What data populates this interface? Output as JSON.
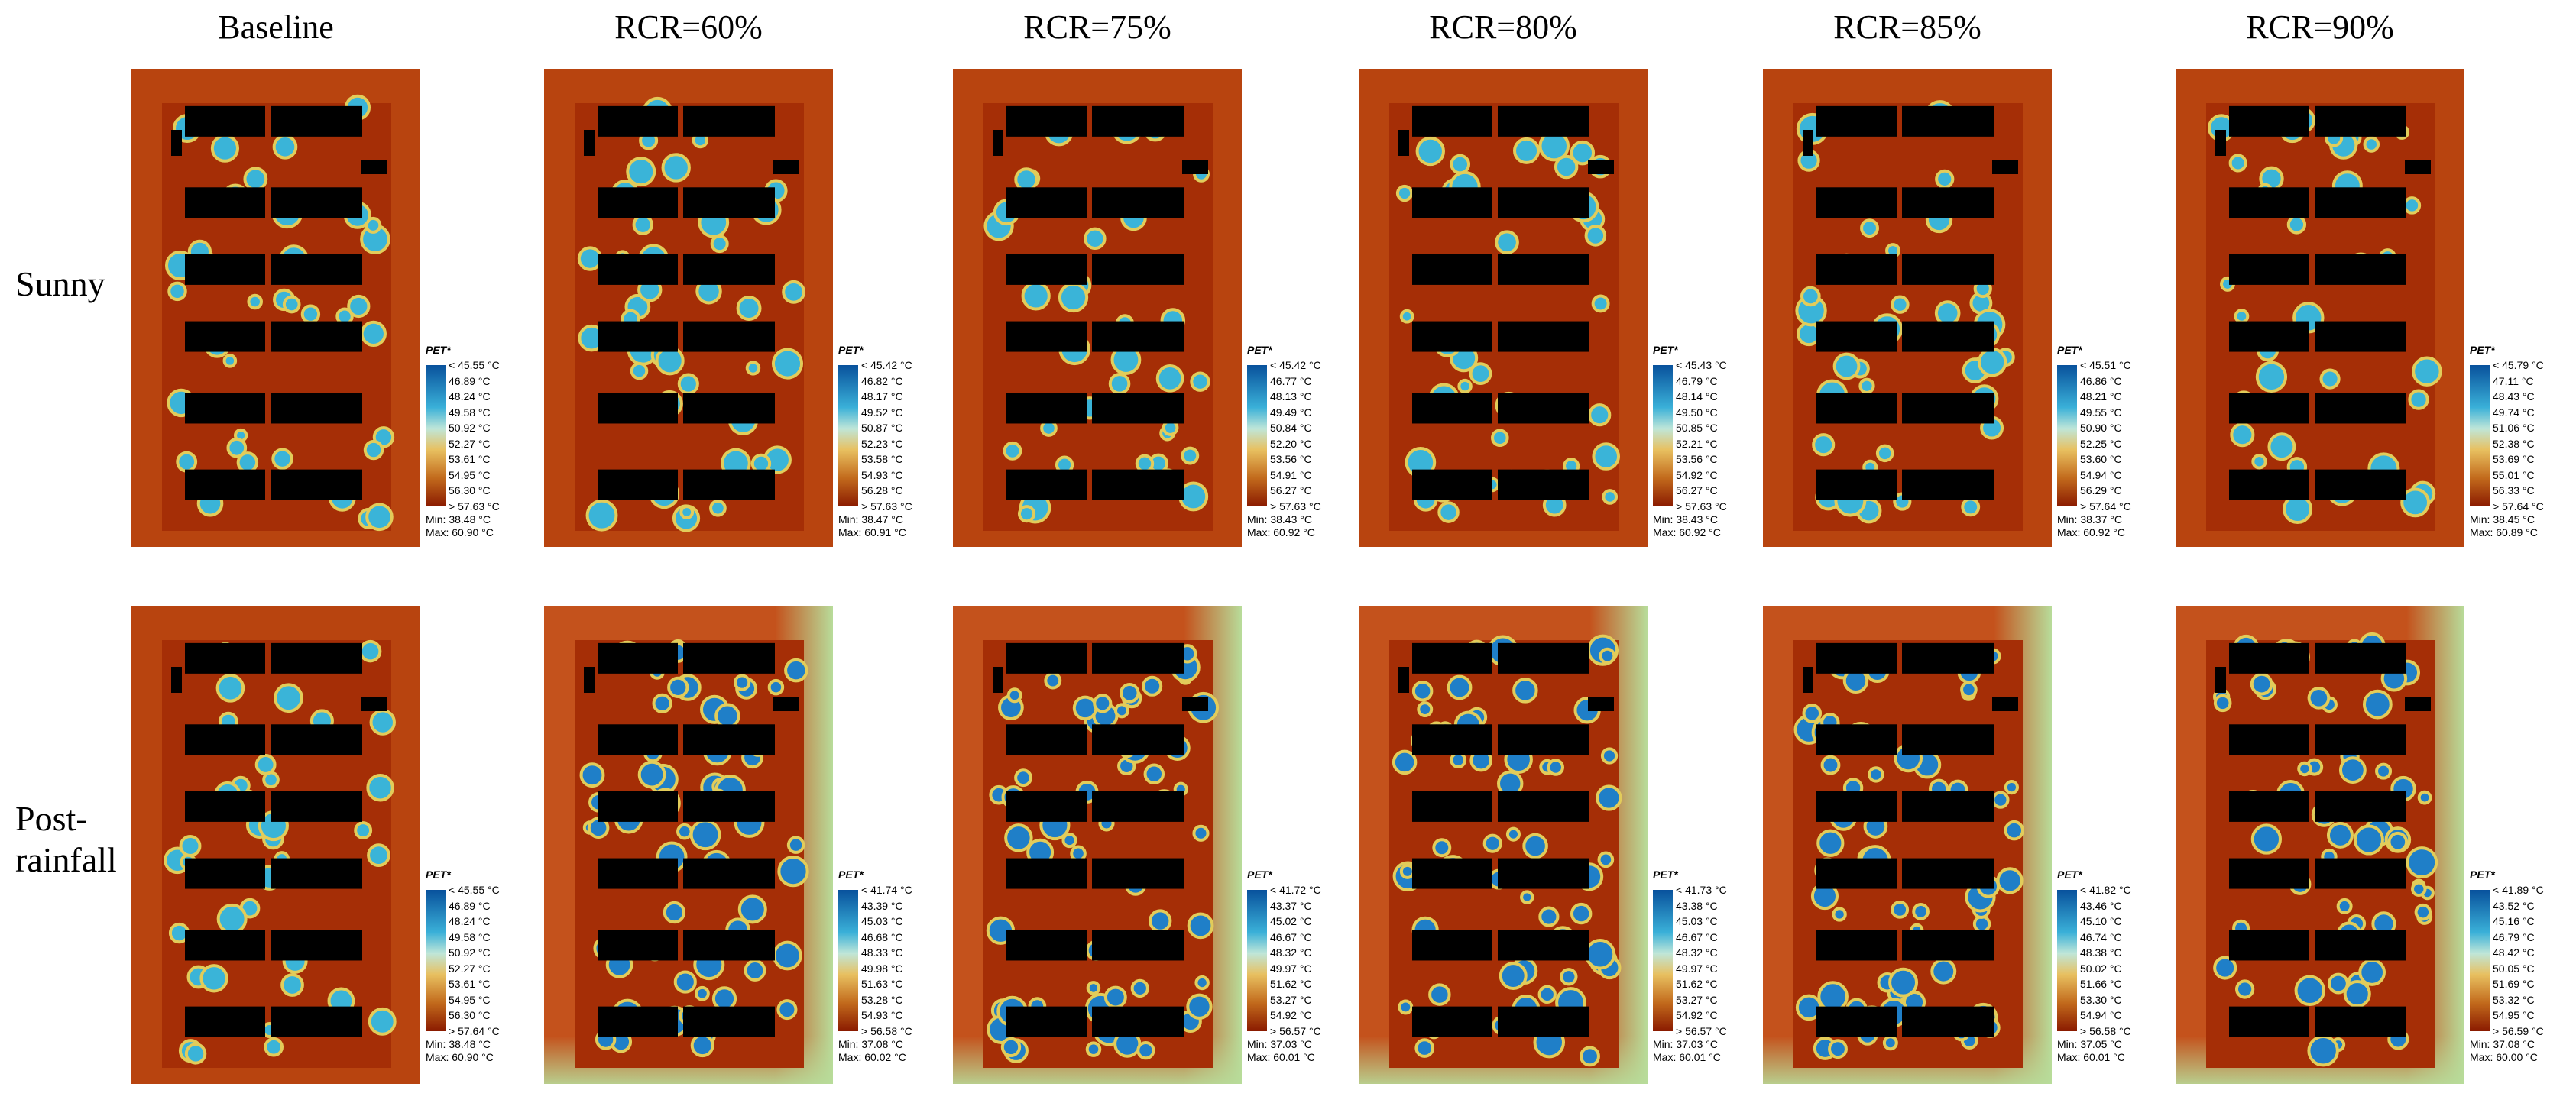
{
  "columns": [
    "Baseline",
    "RCR=60%",
    "RCR=75%",
    "RCR=80%",
    "RCR=85%",
    "RCR=90%"
  ],
  "rows": [
    "Sunny",
    "Post-rainfall"
  ],
  "panels": [
    [
      {
        "legend_title": "PET*",
        "labels": [
          "< 45.55 °C",
          "46.89 °C",
          "48.24 °C",
          "49.58 °C",
          "50.92 °C",
          "52.27 °C",
          "53.61 °C",
          "54.95 °C",
          "56.30 °C",
          "> 57.63 °C"
        ],
        "min": "Min: 38.48 °C",
        "max": "Max: 60.90 °C"
      },
      {
        "legend_title": "PET*",
        "labels": [
          "< 45.42 °C",
          "46.82 °C",
          "48.17 °C",
          "49.52 °C",
          "50.87 °C",
          "52.23 °C",
          "53.58 °C",
          "54.93 °C",
          "56.28 °C",
          "> 57.63 °C"
        ],
        "min": "Min: 38.47 °C",
        "max": "Max: 60.91 °C"
      },
      {
        "legend_title": "PET*",
        "labels": [
          "< 45.42 °C",
          "46.77 °C",
          "48.13 °C",
          "49.49 °C",
          "50.84 °C",
          "52.20 °C",
          "53.56 °C",
          "54.91 °C",
          "56.27 °C",
          "> 57.63 °C"
        ],
        "min": "Min: 38.43 °C",
        "max": "Max: 60.92 °C"
      },
      {
        "legend_title": "PET*",
        "labels": [
          "< 45.43 °C",
          "46.79 °C",
          "48.14 °C",
          "49.50 °C",
          "50.85 °C",
          "52.21 °C",
          "53.56 °C",
          "54.92 °C",
          "56.27 °C",
          "> 57.63 °C"
        ],
        "min": "Min: 38.43 °C",
        "max": "Max: 60.92 °C"
      },
      {
        "legend_title": "PET*",
        "labels": [
          "< 45.51 °C",
          "46.86 °C",
          "48.21 °C",
          "49.55 °C",
          "50.90 °C",
          "52.25 °C",
          "53.60 °C",
          "54.94 °C",
          "56.29 °C",
          "> 57.64 °C"
        ],
        "min": "Min: 38.37 °C",
        "max": "Max: 60.92 °C"
      },
      {
        "legend_title": "PET*",
        "labels": [
          "< 45.79 °C",
          "47.11 °C",
          "48.43 °C",
          "49.74 °C",
          "51.06 °C",
          "52.38 °C",
          "53.69 °C",
          "55.01 °C",
          "56.33 °C",
          "> 57.64 °C"
        ],
        "min": "Min: 38.45 °C",
        "max": "Max: 60.89 °C"
      }
    ],
    [
      {
        "legend_title": "PET*",
        "labels": [
          "< 45.55 °C",
          "46.89 °C",
          "48.24 °C",
          "49.58 °C",
          "50.92 °C",
          "52.27 °C",
          "53.61 °C",
          "54.95 °C",
          "56.30 °C",
          "> 57.64 °C"
        ],
        "min": "Min: 38.48 °C",
        "max": "Max: 60.90 °C"
      },
      {
        "legend_title": "PET*",
        "labels": [
          "< 41.74 °C",
          "43.39 °C",
          "45.03 °C",
          "46.68 °C",
          "48.33 °C",
          "49.98 °C",
          "51.63 °C",
          "53.28 °C",
          "54.93 °C",
          "> 56.58 °C"
        ],
        "min": "Min: 37.08 °C",
        "max": "Max: 60.02 °C"
      },
      {
        "legend_title": "PET*",
        "labels": [
          "< 41.72 °C",
          "43.37 °C",
          "45.02 °C",
          "46.67 °C",
          "48.32 °C",
          "49.97 °C",
          "51.62 °C",
          "53.27 °C",
          "54.92 °C",
          "> 56.57 °C"
        ],
        "min": "Min: 37.03 °C",
        "max": "Max: 60.01 °C"
      },
      {
        "legend_title": "PET*",
        "labels": [
          "< 41.73 °C",
          "43.38 °C",
          "45.03 °C",
          "46.67 °C",
          "48.32 °C",
          "49.97 °C",
          "51.62 °C",
          "53.27 °C",
          "54.92 °C",
          "> 56.57 °C"
        ],
        "min": "Min: 37.03 °C",
        "max": "Max: 60.01 °C"
      },
      {
        "legend_title": "PET*",
        "labels": [
          "< 41.82 °C",
          "43.46 °C",
          "45.10 °C",
          "46.74 °C",
          "48.38 °C",
          "50.02 °C",
          "51.66 °C",
          "53.30 °C",
          "54.94 °C",
          "> 56.58 °C"
        ],
        "min": "Min: 37.05 °C",
        "max": "Max: 60.01 °C"
      },
      {
        "legend_title": "PET*",
        "labels": [
          "< 41.89 °C",
          "43.52 °C",
          "45.16 °C",
          "46.79 °C",
          "48.42 °C",
          "50.05 °C",
          "51.69 °C",
          "53.32 °C",
          "54.95 °C",
          "> 56.59 °C"
        ],
        "min": "Min: 37.08 °C",
        "max": "Max: 60.00 °C"
      }
    ]
  ]
}
